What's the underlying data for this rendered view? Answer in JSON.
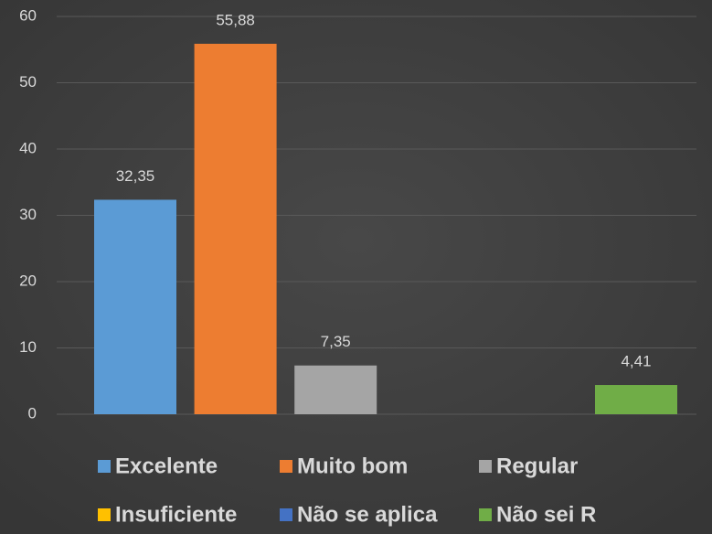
{
  "chart_data": {
    "type": "bar",
    "series": [
      {
        "name": "Excelente",
        "color": "#5b9bd5",
        "values": [
          32.35
        ],
        "value_labels": [
          "32,35"
        ]
      },
      {
        "name": "Muito bom",
        "color": "#ed7d31",
        "values": [
          55.88
        ],
        "value_labels": [
          "55,88"
        ]
      },
      {
        "name": "Regular",
        "color": "#a5a5a5",
        "values": [
          7.35
        ],
        "value_labels": [
          "7,35"
        ]
      },
      {
        "name": "Insuficiente",
        "color": "#ffc000",
        "values": [
          null
        ],
        "value_labels": [
          null
        ]
      },
      {
        "name": "Não se aplica",
        "color": "#4472c4",
        "values": [
          null
        ],
        "value_labels": [
          null
        ]
      },
      {
        "name": "Não sei R",
        "color": "#70ad47",
        "values": [
          4.41
        ],
        "value_labels": [
          "4,41"
        ]
      }
    ],
    "ylim": [
      0,
      60
    ],
    "yticks": [
      0,
      10,
      20,
      30,
      40,
      50,
      60
    ],
    "grid": true,
    "legend": "bottom"
  }
}
